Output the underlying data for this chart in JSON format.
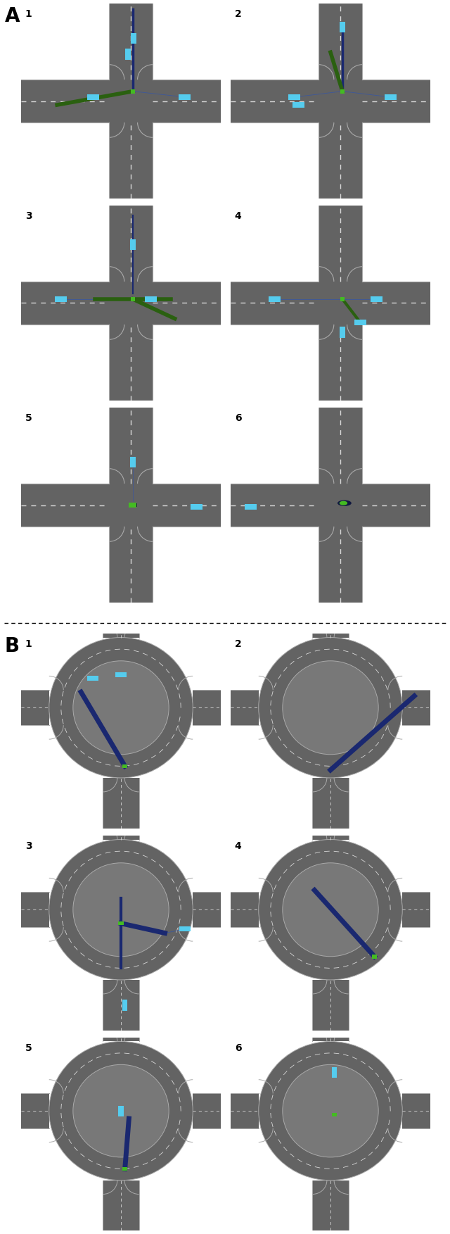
{
  "fig_width": 6.4,
  "fig_height": 17.53,
  "bg_color": "#787878",
  "road_color": "#636363",
  "road_line_color": "#aaaaaa",
  "dash_color": "#d8d8d8",
  "cyan_car": "#55ccee",
  "green_car": "#44bb22",
  "dark_blue_line": "#1a2870",
  "dark_blue_thick": "#1a2870",
  "dark_blue_thin": "#3355aa",
  "green_line": "#2a6010",
  "label_A": "A",
  "label_B": "B"
}
